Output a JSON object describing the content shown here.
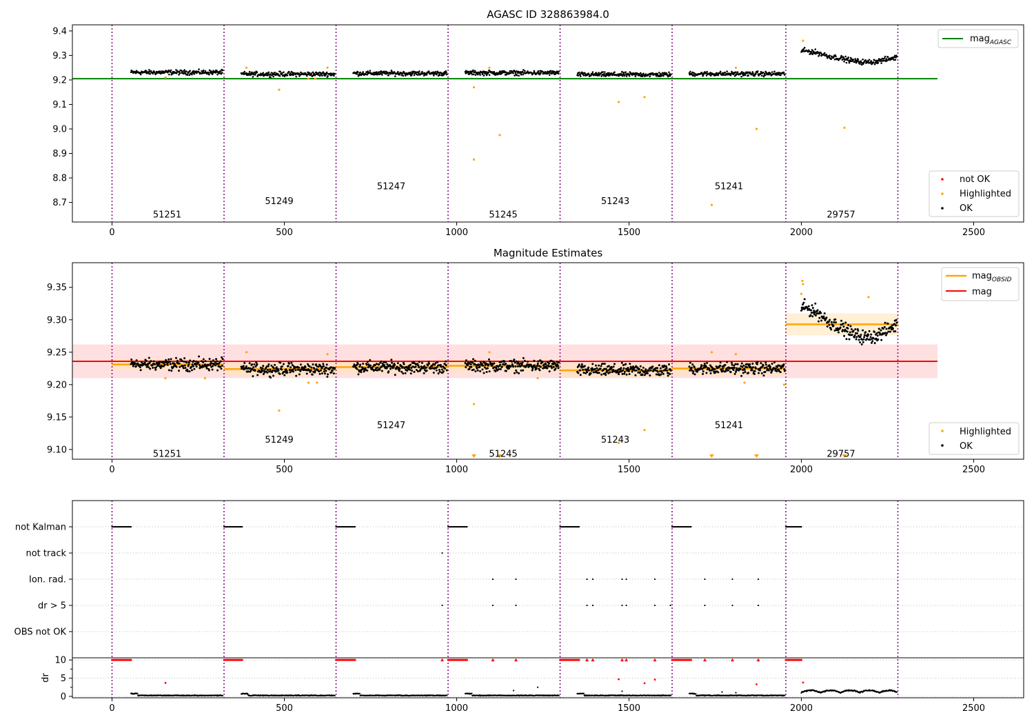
{
  "chart_data": [
    {
      "type": "scatter",
      "title": "AGASC ID 328863984.0",
      "xlabel": "",
      "ylabel": "",
      "xlim": [
        -115,
        2645
      ],
      "ylim": [
        8.62,
        9.425
      ],
      "x_ticks": [
        0,
        500,
        1000,
        1500,
        2000,
        2500
      ],
      "y_ticks": [
        8.7,
        8.8,
        8.9,
        9.0,
        9.1,
        9.2,
        9.3,
        9.4
      ],
      "x_tick_labels": [
        "0",
        "500",
        "1000",
        "1500",
        "2000",
        "2500"
      ],
      "y_tick_labels": [
        "8.7",
        "8.8",
        "8.9",
        "9.0",
        "9.1",
        "9.2",
        "9.3",
        "9.4"
      ],
      "mag_agasc": 9.205,
      "mag_agasc_xrange": [
        -115,
        2395
      ],
      "observation_boundaries": [
        0,
        325,
        650,
        975,
        1300,
        1625,
        1955,
        2280
      ],
      "observations": [
        {
          "obsid": "51251",
          "x": 160,
          "mag": 9.231,
          "label_y": 8.65
        },
        {
          "obsid": "51249",
          "x": 485,
          "mag": 9.224,
          "label_y": 8.705
        },
        {
          "obsid": "51247",
          "x": 810,
          "mag": 9.227,
          "label_y": 8.765
        },
        {
          "obsid": "51245",
          "x": 1135,
          "mag": 9.229,
          "label_y": 8.65
        },
        {
          "obsid": "51243",
          "x": 1460,
          "mag": 9.222,
          "label_y": 8.705
        },
        {
          "obsid": "51241",
          "x": 1790,
          "mag": 9.225,
          "label_y": 8.765
        },
        {
          "obsid": "29757",
          "x": 2115,
          "mag": 9.293,
          "label_y": 8.65
        }
      ],
      "highlighted_points": [
        {
          "x": 155,
          "y": 9.21
        },
        {
          "x": 390,
          "y": 9.25
        },
        {
          "x": 485,
          "y": 9.16
        },
        {
          "x": 570,
          "y": 9.205
        },
        {
          "x": 590,
          "y": 9.205
        },
        {
          "x": 625,
          "y": 9.25
        },
        {
          "x": 1050,
          "y": 9.17
        },
        {
          "x": 1050,
          "y": 8.875
        },
        {
          "x": 1095,
          "y": 9.25
        },
        {
          "x": 1125,
          "y": 8.975
        },
        {
          "x": 1470,
          "y": 9.11
        },
        {
          "x": 1545,
          "y": 9.13
        },
        {
          "x": 1740,
          "y": 8.69
        },
        {
          "x": 1870,
          "y": 9.0
        },
        {
          "x": 2005,
          "y": 9.36
        },
        {
          "x": 2125,
          "y": 9.005
        },
        {
          "x": 1810,
          "y": 9.25
        }
      ],
      "legend_top": {
        "position": "top-right",
        "entries": [
          {
            "name": "mag",
            "subscript": "AGASC",
            "color": "#008000"
          }
        ]
      },
      "legend_bottom": {
        "position": "lower-right",
        "entries": [
          {
            "name": "not OK",
            "color": "#ff0000"
          },
          {
            "name": "Highlighted",
            "color": "#ffa500"
          },
          {
            "name": "OK",
            "color": "#000000"
          }
        ]
      }
    },
    {
      "type": "scatter",
      "title": "Magnitude Estimates",
      "xlabel": "",
      "ylabel": "",
      "xlim": [
        -115,
        2645
      ],
      "ylim": [
        9.085,
        9.388
      ],
      "x_ticks": [
        0,
        500,
        1000,
        1500,
        2000,
        2500
      ],
      "y_ticks": [
        9.1,
        9.15,
        9.2,
        9.25,
        9.3,
        9.35
      ],
      "x_tick_labels": [
        "0",
        "500",
        "1000",
        "1500",
        "2000",
        "2500"
      ],
      "y_tick_labels": [
        "9.10",
        "9.15",
        "9.20",
        "9.25",
        "9.30",
        "9.35"
      ],
      "mag": 9.236,
      "mag_band": [
        9.21,
        9.262
      ],
      "mag_xrange": [
        -115,
        2395
      ],
      "obsid_bands": [
        [
          9.222,
          9.24
        ],
        [
          9.214,
          9.234
        ],
        [
          9.217,
          9.237
        ],
        [
          9.219,
          9.239
        ],
        [
          9.212,
          9.232
        ],
        [
          9.215,
          9.235
        ],
        [
          9.276,
          9.31
        ]
      ],
      "observations": [
        {
          "obsid": "51251",
          "label_y": 9.093
        },
        {
          "obsid": "51249",
          "label_y": 9.115
        },
        {
          "obsid": "51247",
          "label_y": 9.137
        },
        {
          "obsid": "51245",
          "label_y": 9.093
        },
        {
          "obsid": "51243",
          "label_y": 9.115
        },
        {
          "obsid": "51241",
          "label_y": 9.137
        },
        {
          "obsid": "29757",
          "label_y": 9.093
        }
      ],
      "highlighted_points": [
        {
          "x": 155,
          "y": 9.21
        },
        {
          "x": 270,
          "y": 9.21
        },
        {
          "x": 390,
          "y": 9.25
        },
        {
          "x": 485,
          "y": 9.16
        },
        {
          "x": 570,
          "y": 9.203
        },
        {
          "x": 595,
          "y": 9.203
        },
        {
          "x": 625,
          "y": 9.247
        },
        {
          "x": 1050,
          "y": 9.17
        },
        {
          "x": 1095,
          "y": 9.25
        },
        {
          "x": 1235,
          "y": 9.21
        },
        {
          "x": 1470,
          "y": 9.11
        },
        {
          "x": 1545,
          "y": 9.13
        },
        {
          "x": 1740,
          "y": 9.25
        },
        {
          "x": 1810,
          "y": 9.247
        },
        {
          "x": 1835,
          "y": 9.203
        },
        {
          "x": 1950,
          "y": 9.2
        },
        {
          "x": 2000,
          "y": 9.34
        },
        {
          "x": 2003,
          "y": 9.36
        },
        {
          "x": 2005,
          "y": 9.355
        },
        {
          "x": 2195,
          "y": 9.335
        }
      ],
      "offscale_below": [
        1050,
        1125,
        1740,
        1870,
        2125
      ],
      "legend_top": {
        "position": "top-right",
        "entries": [
          {
            "name": "mag",
            "subscript": "OBSID",
            "color": "#ffa500"
          },
          {
            "name": "mag",
            "subscript": "",
            "color": "#ff0000"
          }
        ]
      },
      "legend_bottom": {
        "position": "lower-right",
        "entries": [
          {
            "name": "Highlighted",
            "color": "#ffa500"
          },
          {
            "name": "OK",
            "color": "#000000"
          }
        ]
      }
    },
    {
      "type": "scatter",
      "title": "",
      "xlabel": "",
      "ylabel": "dr",
      "xlim": [
        -115,
        2645
      ],
      "x_ticks": [
        0,
        500,
        1000,
        1500,
        2000,
        2500
      ],
      "x_tick_labels": [
        "0",
        "500",
        "1000",
        "1500",
        "2000",
        "2500"
      ],
      "flag_rows": [
        "not Kalman",
        "not track",
        "Ion. rad.",
        "dr > 5",
        "OBS not OK"
      ],
      "flags": {
        "not Kalman": [
          [
            0,
            55
          ],
          [
            325,
            378
          ],
          [
            650,
            705
          ],
          [
            975,
            1030
          ],
          [
            1300,
            1355
          ],
          [
            1625,
            1680
          ],
          [
            1955,
            2000
          ]
        ],
        "not track": [
          958
        ],
        "Ion. rad.": [
          1105,
          1172,
          1378,
          1395,
          1480,
          1492,
          1575,
          1720,
          1800,
          1875
        ],
        "dr > 5": [
          958,
          1105,
          1172,
          1378,
          1395,
          1480,
          1492,
          1575,
          1620,
          1720,
          1800,
          1875
        ],
        "OBS not OK": []
      },
      "dr_ylim": [
        -0.4,
        10.6
      ],
      "dr_ticks": [
        0,
        5,
        10
      ],
      "dr_tick_labels": [
        "0",
        "5",
        "10"
      ],
      "dr_red_segments": [
        [
          0,
          55
        ],
        [
          325,
          378
        ],
        [
          650,
          705
        ],
        [
          975,
          1030
        ],
        [
          1300,
          1355
        ],
        [
          1625,
          1680
        ],
        [
          1955,
          2000
        ]
      ],
      "dr_red_points": [
        {
          "x": 958,
          "y": 10
        },
        {
          "x": 1105,
          "y": 10
        },
        {
          "x": 1172,
          "y": 10
        },
        {
          "x": 1378,
          "y": 10
        },
        {
          "x": 1395,
          "y": 10
        },
        {
          "x": 1480,
          "y": 10
        },
        {
          "x": 1492,
          "y": 10
        },
        {
          "x": 1575,
          "y": 10
        },
        {
          "x": 1720,
          "y": 10
        },
        {
          "x": 1800,
          "y": 10
        },
        {
          "x": 1875,
          "y": 10
        },
        {
          "x": 155,
          "y": 3.7
        },
        {
          "x": 1470,
          "y": 4.7
        },
        {
          "x": 1545,
          "y": 3.6
        },
        {
          "x": 1575,
          "y": 4.6
        },
        {
          "x": 1870,
          "y": 3.3
        },
        {
          "x": 2005,
          "y": 3.8
        }
      ]
    }
  ]
}
